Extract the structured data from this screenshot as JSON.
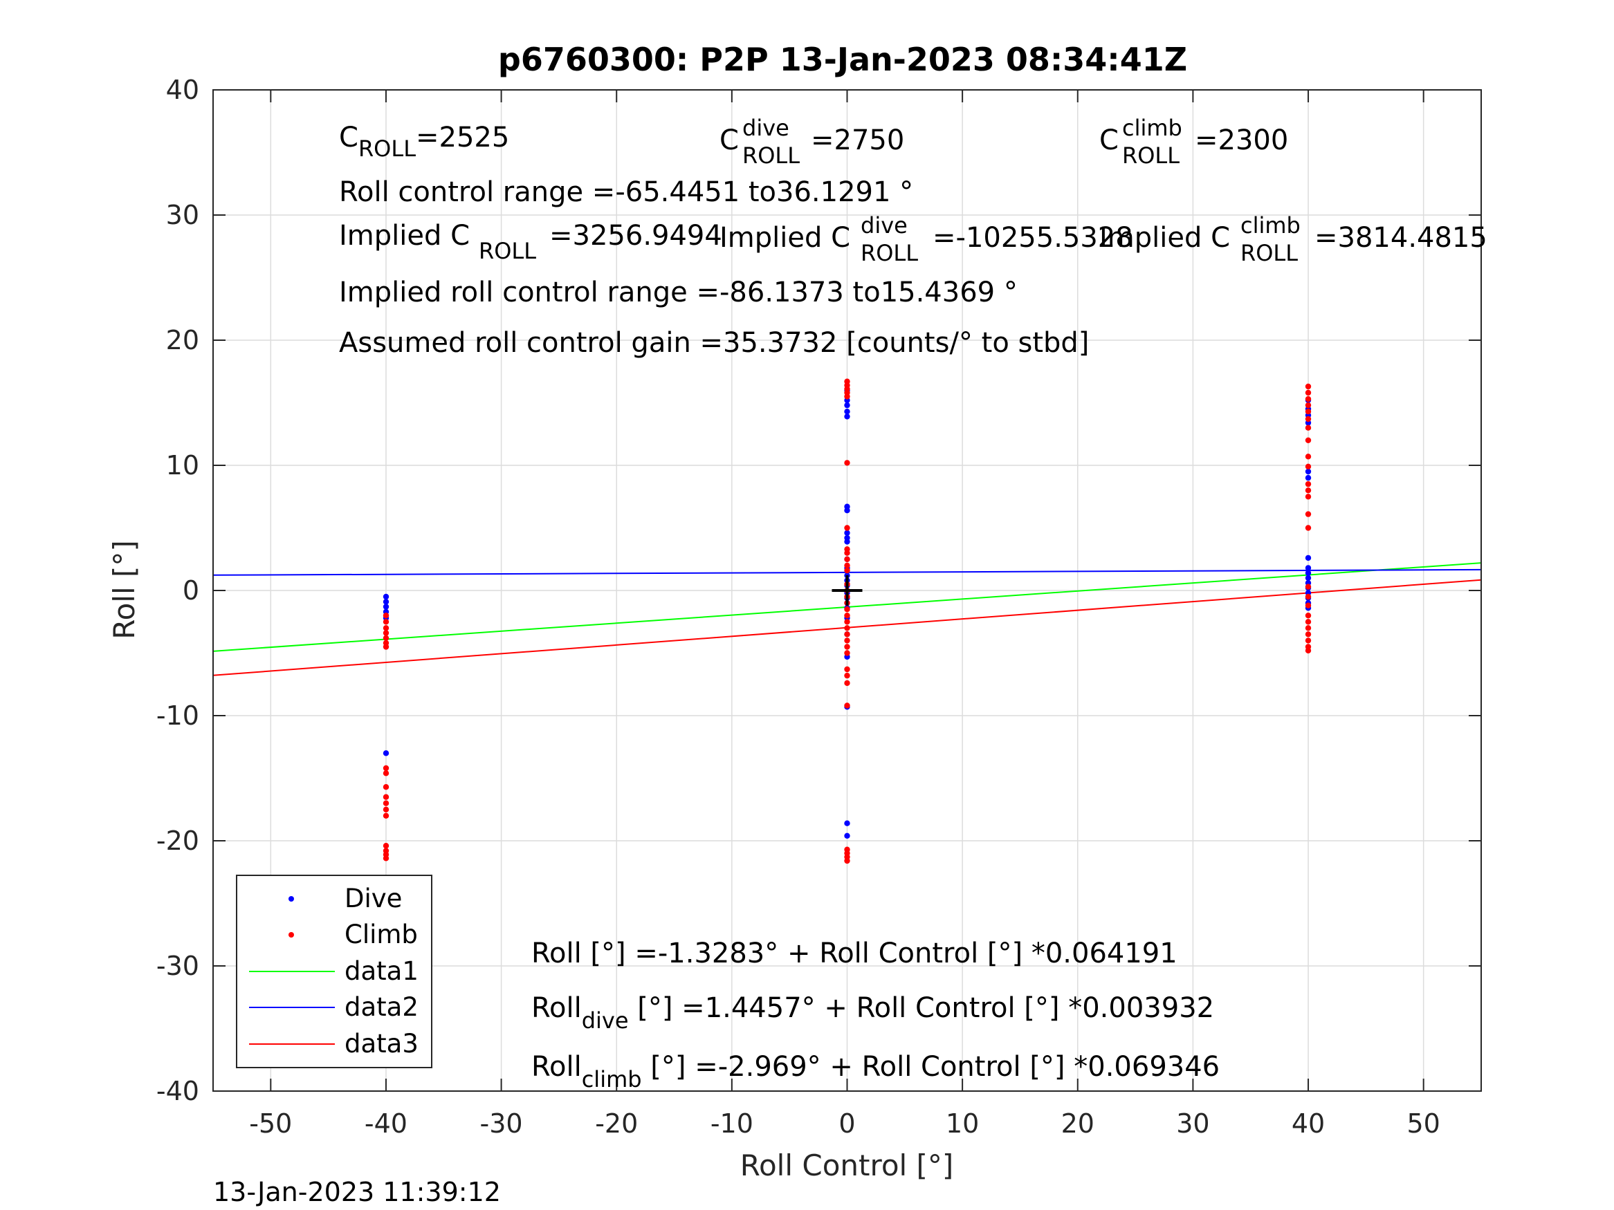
{
  "chart_data": {
    "type": "scatter",
    "title": "p6760300: P2P 13-Jan-2023 08:34:41Z",
    "xlabel": "Roll Control [°]",
    "ylabel": "Roll [°]",
    "xlim": [
      -55,
      55
    ],
    "ylim": [
      -40,
      40
    ],
    "xticks": [
      -50,
      -40,
      -30,
      -20,
      -10,
      0,
      10,
      20,
      30,
      40,
      50
    ],
    "yticks": [
      -40,
      -30,
      -20,
      -10,
      0,
      10,
      20,
      30,
      40
    ],
    "grid": true,
    "legend_position": "bottom-left",
    "series": [
      {
        "name": "Dive",
        "kind": "points",
        "color": "#0000ff",
        "points": [
          [
            -40,
            -0.5
          ],
          [
            -40,
            -0.9
          ],
          [
            -40,
            -1.3
          ],
          [
            -40,
            -1.7
          ],
          [
            -40,
            -2.2
          ],
          [
            -40,
            -13
          ],
          [
            0,
            16
          ],
          [
            0,
            15.2
          ],
          [
            0,
            14.8
          ],
          [
            0,
            14.3
          ],
          [
            0,
            13.9
          ],
          [
            0,
            6.7
          ],
          [
            0,
            6.4
          ],
          [
            0,
            4.6
          ],
          [
            0,
            4.2
          ],
          [
            0,
            3.9
          ],
          [
            0,
            2.5
          ],
          [
            0,
            1.8
          ],
          [
            0,
            1.2
          ],
          [
            0,
            0.8
          ],
          [
            0,
            0.4
          ],
          [
            0,
            -0.2
          ],
          [
            0,
            -0.6
          ],
          [
            0,
            -1
          ],
          [
            0,
            -1.4
          ],
          [
            0,
            -2.2
          ],
          [
            0,
            -3.5
          ],
          [
            0,
            -5.3
          ],
          [
            0,
            -9.3
          ],
          [
            0,
            -18.6
          ],
          [
            0,
            -19.6
          ],
          [
            40,
            15.2
          ],
          [
            40,
            14.5
          ],
          [
            40,
            14
          ],
          [
            40,
            13.4
          ],
          [
            40,
            9.5
          ],
          [
            40,
            9
          ],
          [
            40,
            2.6
          ],
          [
            40,
            1.8
          ],
          [
            40,
            1.4
          ],
          [
            40,
            1
          ],
          [
            40,
            0.6
          ],
          [
            40,
            0.2
          ],
          [
            40,
            -0.2
          ],
          [
            40,
            -0.6
          ],
          [
            40,
            -1
          ],
          [
            40,
            -1.4
          ]
        ]
      },
      {
        "name": "Climb",
        "kind": "points",
        "color": "#ff0000",
        "points": [
          [
            -40,
            -2
          ],
          [
            -40,
            -2.5
          ],
          [
            -40,
            -3
          ],
          [
            -40,
            -3.4
          ],
          [
            -40,
            -3.8
          ],
          [
            -40,
            -4.2
          ],
          [
            -40,
            -4.5
          ],
          [
            -40,
            -14.2
          ],
          [
            -40,
            -14.6
          ],
          [
            -40,
            -15.7
          ],
          [
            -40,
            -16.5
          ],
          [
            -40,
            -17
          ],
          [
            -40,
            -17.5
          ],
          [
            -40,
            -18
          ],
          [
            -40,
            -20.4
          ],
          [
            -40,
            -20.8
          ],
          [
            -40,
            -21.1
          ],
          [
            -40,
            -21.4
          ],
          [
            0,
            16.7
          ],
          [
            0,
            16.4
          ],
          [
            0,
            16.1
          ],
          [
            0,
            15.8
          ],
          [
            0,
            15.5
          ],
          [
            0,
            10.2
          ],
          [
            0,
            5
          ],
          [
            0,
            3.3
          ],
          [
            0,
            3
          ],
          [
            0,
            2.5
          ],
          [
            0,
            2
          ],
          [
            0,
            1.6
          ],
          [
            0,
            0.5
          ],
          [
            0,
            0
          ],
          [
            0,
            -0.5
          ],
          [
            0,
            -1
          ],
          [
            0,
            -1.5
          ],
          [
            0,
            -2
          ],
          [
            0,
            -2.5
          ],
          [
            0,
            -3
          ],
          [
            0,
            -3.5
          ],
          [
            0,
            -4
          ],
          [
            0,
            -4.5
          ],
          [
            0,
            -5
          ],
          [
            0,
            -6.3
          ],
          [
            0,
            -6.8
          ],
          [
            0,
            -7.4
          ],
          [
            0,
            -9.2
          ],
          [
            0,
            -20.7
          ],
          [
            0,
            -21
          ],
          [
            0,
            -21.3
          ],
          [
            0,
            -21.6
          ],
          [
            40,
            16.3
          ],
          [
            40,
            15.8
          ],
          [
            40,
            15.3
          ],
          [
            40,
            14.8
          ],
          [
            40,
            14.3
          ],
          [
            40,
            13.7
          ],
          [
            40,
            13
          ],
          [
            40,
            12
          ],
          [
            40,
            10.7
          ],
          [
            40,
            9.9
          ],
          [
            40,
            8.5
          ],
          [
            40,
            8
          ],
          [
            40,
            7.5
          ],
          [
            40,
            6.1
          ],
          [
            40,
            5
          ],
          [
            40,
            0.3
          ],
          [
            40,
            -0.5
          ],
          [
            40,
            -1.2
          ],
          [
            40,
            -2
          ],
          [
            40,
            -2.5
          ],
          [
            40,
            -3
          ],
          [
            40,
            -3.5
          ],
          [
            40,
            -4
          ],
          [
            40,
            -4.5
          ],
          [
            40,
            -4.8
          ]
        ]
      },
      {
        "name": "data1",
        "kind": "line",
        "color": "#00ff00",
        "x": [
          -55,
          55
        ],
        "y": [
          -4.859,
          2.202
        ]
      },
      {
        "name": "data2",
        "kind": "line",
        "color": "#0000ff",
        "x": [
          -55,
          55
        ],
        "y": [
          1.229,
          1.662
        ]
      },
      {
        "name": "data3",
        "kind": "line",
        "color": "#ff0000",
        "x": [
          -55,
          55
        ],
        "y": [
          -6.783,
          0.845
        ]
      }
    ],
    "marker": {
      "symbol": "+",
      "x": 0,
      "y": 0,
      "color": "#000000"
    },
    "annotations": {
      "c_roll": {
        "base": "C",
        "sub": "ROLL",
        "value": "=2525"
      },
      "c_roll_dive": {
        "base": "C",
        "sup": "dive",
        "sub": "ROLL",
        "value": "=2750"
      },
      "c_roll_climb": {
        "base": "C",
        "sup": "climb",
        "sub": "ROLL",
        "value": "=2300"
      },
      "range": "Roll control range =-65.4451 to36.1291 °",
      "implied_c_roll": {
        "prefix": "Implied C",
        "sub": "ROLL",
        "value": "=3256.9494"
      },
      "implied_c_roll_dive": {
        "prefix": "Implied C",
        "sup": "dive",
        "sub": "ROLL",
        "value": "=-10255.5328"
      },
      "implied_c_roll_climb": {
        "prefix": "Implied C",
        "sup": "climb",
        "sub": "ROLL",
        "value": "=3814.4815"
      },
      "implied_range": "Implied roll control range =-86.1373 to15.4369 °",
      "gain": "Assumed roll control gain =35.3732 [counts/° to stbd]",
      "fit_all": "Roll [°] =-1.3283° + Roll Control [°] *0.064191",
      "fit_dive": {
        "base": "Roll",
        "sub": "dive",
        "value": " [°] =1.4457° + Roll Control [°] *0.003932"
      },
      "fit_climb": {
        "base": "Roll",
        "sub": "climb",
        "value": " [°] =-2.969° + Roll Control [°] *0.069346"
      }
    },
    "timestamp": "13-Jan-2023 11:39:12"
  }
}
